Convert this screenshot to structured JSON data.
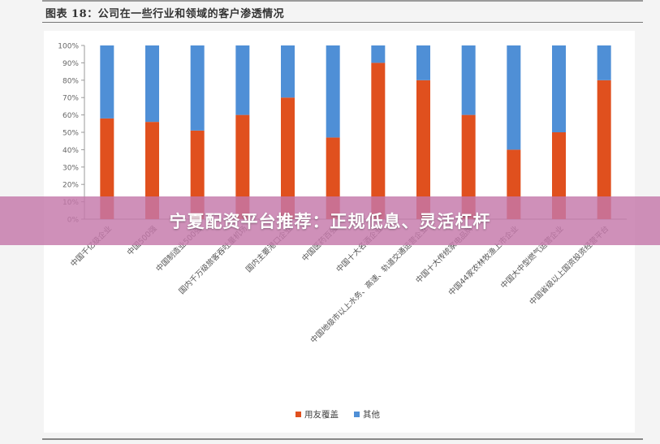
{
  "figure": {
    "title": "图表 18：公司在一些行业和领域的客户渗透情况"
  },
  "banner": {
    "text": "宁夏配资平台推荐：正规低息、灵活杠杆"
  },
  "colors": {
    "covered": "#e0501e",
    "other": "#4f8fd6"
  },
  "chart_data": {
    "type": "bar",
    "stacked": true,
    "categories": [
      "中国千亿级企业",
      "中国500强",
      "中国制造业500强",
      "国内千万级旅客吞吐量机场",
      "国内主要港口企业",
      "中国医药百强",
      "中国十大名酒企业",
      "中国地级市以上水务、高速、轨道交通运营企业",
      "中国十大传统家电品牌",
      "中国44家农林牧渔上市企业",
      "中国大中型燃气运营企业",
      "中国省级以上国资投资经营平台"
    ],
    "series": [
      {
        "name": "用友覆盖",
        "values": [
          58,
          56,
          51,
          60,
          70,
          47,
          90,
          80,
          60,
          40,
          50,
          80
        ]
      },
      {
        "name": "其他",
        "values": [
          42,
          44,
          49,
          40,
          30,
          53,
          10,
          20,
          40,
          60,
          50,
          20
        ]
      }
    ],
    "ylim": [
      0,
      100
    ],
    "yticks": [
      "0%",
      "10%",
      "20%",
      "30%",
      "40%",
      "50%",
      "60%",
      "70%",
      "80%",
      "90%",
      "100%"
    ],
    "legend_position": "bottom",
    "grid": false
  }
}
